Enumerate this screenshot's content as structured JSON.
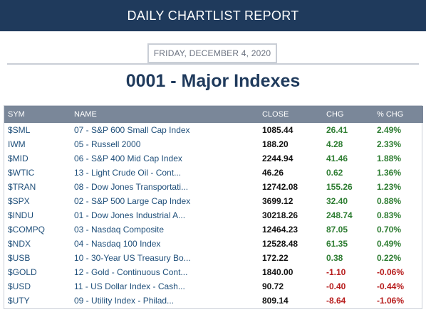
{
  "header": {
    "title": "DAILY CHARTLIST REPORT"
  },
  "report": {
    "date": "FRIDAY, DECEMBER 4, 2020",
    "title": "0001 - Major Indexes"
  },
  "table": {
    "columns": [
      "SYM",
      "NAME",
      "CLOSE",
      "CHG",
      "% CHG"
    ],
    "rows": [
      {
        "sym": "$SML",
        "name": "07 - S&P 600 Small Cap Index",
        "close": "1085.44",
        "chg": "26.41",
        "pct": "2.49%",
        "dir": "pos"
      },
      {
        "sym": "IWM",
        "name": "05 - Russell 2000",
        "close": "188.20",
        "chg": "4.28",
        "pct": "2.33%",
        "dir": "pos"
      },
      {
        "sym": "$MID",
        "name": "06 - S&P 400 Mid Cap Index",
        "close": "2244.94",
        "chg": "41.46",
        "pct": "1.88%",
        "dir": "pos"
      },
      {
        "sym": "$WTIC",
        "name": "13 - Light Crude Oil - Cont...",
        "close": "46.26",
        "chg": "0.62",
        "pct": "1.36%",
        "dir": "pos"
      },
      {
        "sym": "$TRAN",
        "name": "08 - Dow Jones Transportati...",
        "close": "12742.08",
        "chg": "155.26",
        "pct": "1.23%",
        "dir": "pos"
      },
      {
        "sym": "$SPX",
        "name": "02 - S&P 500 Large Cap Index",
        "close": "3699.12",
        "chg": "32.40",
        "pct": "0.88%",
        "dir": "pos"
      },
      {
        "sym": "$INDU",
        "name": "01 - Dow Jones Industrial A...",
        "close": "30218.26",
        "chg": "248.74",
        "pct": "0.83%",
        "dir": "pos"
      },
      {
        "sym": "$COMPQ",
        "name": "03 - Nasdaq Composite",
        "close": "12464.23",
        "chg": "87.05",
        "pct": "0.70%",
        "dir": "pos"
      },
      {
        "sym": "$NDX",
        "name": "04 - Nasdaq 100 Index",
        "close": "12528.48",
        "chg": "61.35",
        "pct": "0.49%",
        "dir": "pos"
      },
      {
        "sym": "$USB",
        "name": "10 - 30-Year US Treasury Bo...",
        "close": "172.22",
        "chg": "0.38",
        "pct": "0.22%",
        "dir": "pos"
      },
      {
        "sym": "$GOLD",
        "name": "12 - Gold - Continuous Cont...",
        "close": "1840.00",
        "chg": "-1.10",
        "pct": "-0.06%",
        "dir": "neg"
      },
      {
        "sym": "$USD",
        "name": "11 - US Dollar Index - Cash...",
        "close": "90.72",
        "chg": "-0.40",
        "pct": "-0.44%",
        "dir": "neg"
      },
      {
        "sym": "$UTY",
        "name": "09 - Utility Index - Philad...",
        "close": "809.14",
        "chg": "-8.64",
        "pct": "-1.06%",
        "dir": "neg"
      }
    ]
  },
  "colors": {
    "banner": "#1f3a5c",
    "header_row": "#7a8799",
    "positive": "#2e7d32",
    "negative": "#b71c1c",
    "link": "#1f4f7a"
  }
}
